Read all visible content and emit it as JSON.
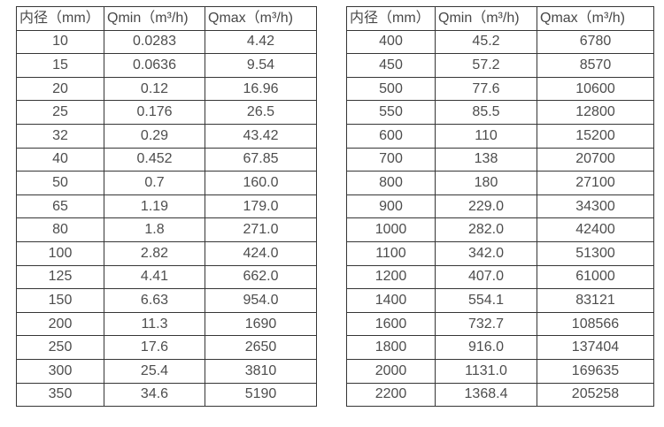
{
  "colors": {
    "background": "#ffffff",
    "border": "#363636",
    "text": "#4d4d4d"
  },
  "chart_data": [
    {
      "type": "table",
      "name": "flow-spec-table-left",
      "columns": [
        "内径（mm）",
        "Qmin（m³/h)",
        "Qmax（m³/h)"
      ],
      "rows": [
        [
          "10",
          "0.0283",
          "4.42"
        ],
        [
          "15",
          "0.0636",
          "9.54"
        ],
        [
          "20",
          "0.12",
          "16.96"
        ],
        [
          "25",
          "0.176",
          "26.5"
        ],
        [
          "32",
          "0.29",
          "43.42"
        ],
        [
          "40",
          "0.452",
          "67.85"
        ],
        [
          "50",
          "0.7",
          "160.0"
        ],
        [
          "65",
          "1.19",
          "179.0"
        ],
        [
          "80",
          "1.8",
          "271.0"
        ],
        [
          "100",
          "2.82",
          "424.0"
        ],
        [
          "125",
          "4.41",
          "662.0"
        ],
        [
          "150",
          "6.63",
          "954.0"
        ],
        [
          "200",
          "11.3",
          "1690"
        ],
        [
          "250",
          "17.6",
          "2650"
        ],
        [
          "300",
          "25.4",
          "3810"
        ],
        [
          "350",
          "34.6",
          "5190"
        ]
      ]
    },
    {
      "type": "table",
      "name": "flow-spec-table-right",
      "columns": [
        "内径（mm）",
        "Qmin（m³/h)",
        "Qmax（m³/h)"
      ],
      "rows": [
        [
          "400",
          "45.2",
          "6780"
        ],
        [
          "450",
          "57.2",
          "8570"
        ],
        [
          "500",
          "77.6",
          "10600"
        ],
        [
          "550",
          "85.5",
          "12800"
        ],
        [
          "600",
          "110",
          "15200"
        ],
        [
          "700",
          "138",
          "20700"
        ],
        [
          "800",
          "180",
          "27100"
        ],
        [
          "900",
          "229.0",
          "34300"
        ],
        [
          "1000",
          "282.0",
          "42400"
        ],
        [
          "1100",
          "342.0",
          "51300"
        ],
        [
          "1200",
          "407.0",
          "61000"
        ],
        [
          "1400",
          "554.1",
          "83121"
        ],
        [
          "1600",
          "732.7",
          "108566"
        ],
        [
          "1800",
          "916.0",
          "137404"
        ],
        [
          "2000",
          "1131.0",
          "169635"
        ],
        [
          "2200",
          "1368.4",
          "205258"
        ]
      ]
    }
  ]
}
